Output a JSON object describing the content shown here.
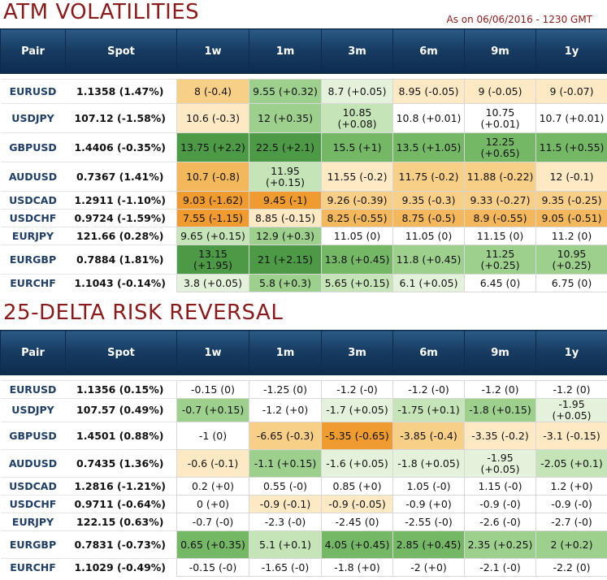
{
  "atm": {
    "title": "ATM VOLATILITIES",
    "as_of": "As on 06/06/2016 - 1230 GMT",
    "headers": [
      "Pair",
      "Spot",
      "1w",
      "1m",
      "3m",
      "6m",
      "9m",
      "1y"
    ],
    "rows": [
      {
        "pair": "EURUSD",
        "spot": "1.1358 (1.47%)",
        "cells": [
          "8 (-0.4)",
          "9.55 (+0.32)",
          "8.7 (+0.05)",
          "8.95 (-0.05)",
          "9 (-0.05)",
          "9 (-0.07)"
        ],
        "colors": [
          "o2",
          "g3",
          "g1",
          "o1",
          "o1",
          "o1"
        ]
      },
      {
        "pair": "USDJPY",
        "spot": "107.12 (-1.58%)",
        "cells": [
          "10.6 (-0.3)",
          "12 (+0.35)",
          "10.85 (+0.08)",
          "10.8 (+0.01)",
          "10.75 (+0.01)",
          "10.7 (+0.01)"
        ],
        "colors": [
          "o1",
          "g3",
          "g2",
          "w",
          "w",
          "w"
        ]
      },
      {
        "pair": "GBPUSD",
        "spot": "1.4406 (-0.35%)",
        "cells": [
          "13.75 (+2.2)",
          "22.5 (+2.1)",
          "15.5 (+1)",
          "13.5 (+1.05)",
          "12.25 (+0.65)",
          "11.5 (+0.55)"
        ],
        "colors": [
          "g5",
          "g5",
          "g4",
          "g4",
          "g4",
          "g4"
        ]
      },
      {
        "pair": "AUDUSD",
        "spot": "0.7367 (1.41%)",
        "cells": [
          "10.7 (-0.8)",
          "11.95 (+0.15)",
          "11.55 (-0.2)",
          "11.75 (-0.2)",
          "11.88 (-0.22)",
          "12 (-0.1)"
        ],
        "colors": [
          "o3",
          "g2",
          "o1",
          "o2",
          "o2",
          "o1"
        ]
      },
      {
        "pair": "USDCAD",
        "spot": "1.2911 (-1.10%)",
        "cells": [
          "9.03 (-1.62)",
          "9.45 (-1)",
          "9.26 (-0.39)",
          "9.35 (-0.3)",
          "9.33 (-0.27)",
          "9.35 (-0.25)"
        ],
        "colors": [
          "o4",
          "o4",
          "o2",
          "o2",
          "o2",
          "o2"
        ]
      },
      {
        "pair": "USDCHF",
        "spot": "0.9724 (-1.59%)",
        "cells": [
          "7.55 (-1.15)",
          "8.85 (-0.15)",
          "8.25 (-0.55)",
          "8.75 (-0.5)",
          "8.9 (-0.55)",
          "9.05 (-0.51)"
        ],
        "colors": [
          "o4",
          "o1",
          "o3",
          "o3",
          "o3",
          "o3"
        ]
      },
      {
        "pair": "EURJPY",
        "spot": "121.66 (0.28%)",
        "cells": [
          "9.65 (+0.15)",
          "12.9 (+0.3)",
          "11.05 (0)",
          "11.05 (0)",
          "11.15 (0)",
          "11.2 (0)"
        ],
        "colors": [
          "g2",
          "g3",
          "w",
          "w",
          "w",
          "w"
        ]
      },
      {
        "pair": "EURGBP",
        "spot": "0.7884 (1.81%)",
        "cells": [
          "13.15 (+1.95)",
          "21 (+2.15)",
          "13.8 (+0.45)",
          "11.8 (+0.45)",
          "11.25 (+0.25)",
          "10.95 (+0.25)"
        ],
        "colors": [
          "g5",
          "g5",
          "g4",
          "g3",
          "g3",
          "g3"
        ]
      },
      {
        "pair": "EURCHF",
        "spot": "1.1043 (-0.14%)",
        "cells": [
          "3.8 (+0.05)",
          "5.8 (+0.3)",
          "5.65 (+0.15)",
          "6.1 (+0.05)",
          "6.45 (0)",
          "6.75 (0)"
        ],
        "colors": [
          "g1",
          "g3",
          "g2",
          "g1",
          "w",
          "w"
        ]
      }
    ]
  },
  "rr": {
    "title": "25-DELTA RISK REVERSAL",
    "headers": [
      "Pair",
      "Spot",
      "1w",
      "1m",
      "3m",
      "6m",
      "9m",
      "1y"
    ],
    "rows": [
      {
        "pair": "EURUSD",
        "spot": "1.1356 (0.15%)",
        "cells": [
          "-0.15 (0)",
          "-1.25 (0)",
          "-1.2 (-0)",
          "-1.2 (-0)",
          "-1.2 (0)",
          "-1.2 (0)"
        ],
        "colors": [
          "w",
          "w",
          "w",
          "w",
          "w",
          "w"
        ]
      },
      {
        "pair": "USDJPY",
        "spot": "107.57 (0.49%)",
        "cells": [
          "-0.7 (+0.15)",
          "-1.2 (+0)",
          "-1.7 (+0.05)",
          "-1.75 (+0.1)",
          "-1.8 (+0.15)",
          "-1.95 (+0.05)"
        ],
        "colors": [
          "g3",
          "w",
          "g1",
          "g2",
          "g3",
          "g1"
        ]
      },
      {
        "pair": "GBPUSD",
        "spot": "1.4501 (0.88%)",
        "cells": [
          "-1 (0)",
          "-6.65 (-0.3)",
          "-5.35 (-0.65)",
          "-3.85 (-0.4)",
          "-3.35 (-0.2)",
          "-3.1 (-0.15)"
        ],
        "colors": [
          "w",
          "o2",
          "o4",
          "o2",
          "o1",
          "o1"
        ]
      },
      {
        "pair": "AUDUSD",
        "spot": "0.7435 (1.36%)",
        "cells": [
          "-0.6 (-0.1)",
          "-1.1 (+0.15)",
          "-1.6 (+0.05)",
          "-1.8 (+0.05)",
          "-1.95 (+0.05)",
          "-2.05 (+0.1)"
        ],
        "colors": [
          "o1",
          "g3",
          "g1",
          "g1",
          "g1",
          "g2"
        ]
      },
      {
        "pair": "USDCAD",
        "spot": "1.2816 (-1.21%)",
        "cells": [
          "0.2 (+0)",
          "0.55 (-0)",
          "0.85 (+0)",
          "1.05 (-0)",
          "1.15 (-0)",
          "1.2 (+0)"
        ],
        "colors": [
          "w",
          "w",
          "w",
          "w",
          "w",
          "w"
        ]
      },
      {
        "pair": "USDCHF",
        "spot": "0.9711 (-0.64%)",
        "cells": [
          "0 (+0)",
          "-0.9 (-0.1)",
          "-0.9 (-0.05)",
          "-0.9 (+0)",
          "-0.9 (-0)",
          "-0.9 (-0)"
        ],
        "colors": [
          "w",
          "o1",
          "o1",
          "w",
          "w",
          "w"
        ]
      },
      {
        "pair": "EURJPY",
        "spot": "122.15 (0.63%)",
        "cells": [
          "-0.7 (-0)",
          "-2.3 (-0)",
          "-2.45 (0)",
          "-2.55 (-0)",
          "-2.6 (-0)",
          "-2.7 (-0)"
        ],
        "colors": [
          "w",
          "w",
          "w",
          "w",
          "w",
          "w"
        ]
      },
      {
        "pair": "EURGBP",
        "spot": "0.7831 (-0.73%)",
        "cells": [
          "0.65 (+0.35)",
          "5.1 (+0.1)",
          "4.05 (+0.45)",
          "2.85 (+0.45)",
          "2.35 (+0.25)",
          "2 (+0.2)"
        ],
        "colors": [
          "g4",
          "g2",
          "g4",
          "g4",
          "g3",
          "g3"
        ]
      },
      {
        "pair": "EURCHF",
        "spot": "1.1029 (-0.49%)",
        "cells": [
          "-0.15 (-0)",
          "-1.65 (-0)",
          "-1.8 (+0)",
          "-2 (+0)",
          "-2.1 (-0)",
          "-2.2 (0)"
        ],
        "colors": [
          "w",
          "w",
          "w",
          "w",
          "w",
          "w"
        ]
      }
    ]
  }
}
